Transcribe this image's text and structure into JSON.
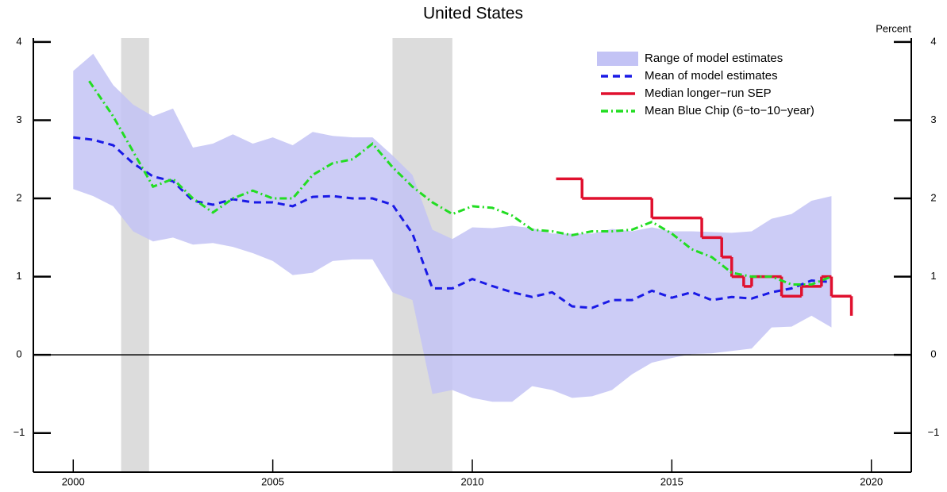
{
  "chart_data": {
    "type": "line",
    "title": "United States",
    "y_axis_label": "Percent",
    "xlim": [
      1999,
      2021
    ],
    "xticks": [
      2000,
      2005,
      2010,
      2015,
      2020
    ],
    "ylim": [
      -1.5,
      4.05
    ],
    "yticks": [
      {
        "value": -1,
        "label": "−1"
      },
      0,
      1,
      2,
      3,
      4
    ],
    "right_axis": true,
    "zero_line": true,
    "legend_position": "upper right",
    "shaded_periods": {
      "color": "#dcdcdc",
      "ranges": [
        [
          2001.2,
          2001.9
        ],
        [
          2008.0,
          2009.5
        ]
      ]
    },
    "band": {
      "name": "Range of model estimates",
      "color": "#c3c3f5",
      "x": [
        2000,
        2000.5,
        2001,
        2001.5,
        2002,
        2002.5,
        2003,
        2003.5,
        2004,
        2004.5,
        2005,
        2005.5,
        2006,
        2006.5,
        2007,
        2007.5,
        2008,
        2008.5,
        2009,
        2009.5,
        2010,
        2010.5,
        2011,
        2011.5,
        2012,
        2012.5,
        2013,
        2013.5,
        2014,
        2014.5,
        2015,
        2015.5,
        2016,
        2016.5,
        2017,
        2017.5,
        2018,
        2018.5,
        2019
      ],
      "high": [
        3.63,
        3.85,
        3.45,
        3.2,
        3.05,
        3.15,
        2.65,
        2.7,
        2.82,
        2.7,
        2.78,
        2.68,
        2.85,
        2.8,
        2.78,
        2.78,
        2.55,
        2.3,
        1.6,
        1.48,
        1.63,
        1.62,
        1.65,
        1.62,
        1.55,
        1.55,
        1.55,
        1.61,
        1.58,
        1.63,
        1.58,
        1.58,
        1.57,
        1.56,
        1.58,
        1.74,
        1.8,
        1.97,
        2.03
      ],
      "low": [
        2.12,
        2.03,
        1.9,
        1.58,
        1.45,
        1.5,
        1.41,
        1.43,
        1.38,
        1.3,
        1.2,
        1.02,
        1.05,
        1.2,
        1.22,
        1.22,
        0.8,
        0.7,
        -0.5,
        -0.45,
        -0.55,
        -0.6,
        -0.6,
        -0.4,
        -0.45,
        -0.55,
        -0.53,
        -0.45,
        -0.25,
        -0.1,
        -0.04,
        0.01,
        0.02,
        0.05,
        0.08,
        0.35,
        0.36,
        0.5,
        0.35
      ]
    },
    "series": [
      {
        "name": "Mean of model estimates",
        "color": "#1a1ae6",
        "style": "dashed",
        "x": [
          2000,
          2000.5,
          2001,
          2001.5,
          2002,
          2002.5,
          2003,
          2003.5,
          2004,
          2004.5,
          2005,
          2005.5,
          2006,
          2006.5,
          2007,
          2007.5,
          2008,
          2008.5,
          2009,
          2009.5,
          2010,
          2010.5,
          2011,
          2011.5,
          2012,
          2012.5,
          2013,
          2013.5,
          2014,
          2014.5,
          2015,
          2015.5,
          2016,
          2016.5,
          2017,
          2017.5,
          2018,
          2018.5,
          2019
        ],
        "values": [
          2.78,
          2.75,
          2.68,
          2.45,
          2.28,
          2.22,
          1.97,
          1.92,
          1.99,
          1.95,
          1.95,
          1.9,
          2.02,
          2.03,
          2.0,
          2.0,
          1.92,
          1.55,
          0.85,
          0.85,
          0.97,
          0.88,
          0.8,
          0.74,
          0.8,
          0.62,
          0.6,
          0.7,
          0.7,
          0.82,
          0.73,
          0.8,
          0.7,
          0.74,
          0.72,
          0.8,
          0.85,
          0.95,
          0.93
        ]
      },
      {
        "name": "Median longer−run SEP",
        "color": "#e0102e",
        "style": "step",
        "x": [
          2012.1,
          2012.75,
          2014.5,
          2015.75,
          2016.25,
          2016.5,
          2016.8,
          2017.0,
          2017.75,
          2018.25,
          2018.75,
          2019.0,
          2019.5
        ],
        "values": [
          2.25,
          2.0,
          1.75,
          1.5,
          1.25,
          1.0,
          0.875,
          1.0,
          0.75,
          0.875,
          1.0,
          0.75,
          0.5
        ]
      },
      {
        "name": "Mean Blue Chip (6−to−10−year)",
        "color": "#22dd22",
        "style": "dashdot",
        "x": [
          2000.4,
          2001,
          2001.5,
          2002,
          2002.5,
          2003,
          2003.5,
          2004,
          2004.5,
          2005,
          2005.5,
          2006,
          2006.5,
          2007,
          2007.5,
          2008,
          2008.5,
          2009,
          2009.5,
          2010,
          2010.5,
          2011,
          2011.5,
          2012,
          2012.5,
          2013,
          2013.5,
          2014,
          2014.5,
          2015,
          2015.5,
          2016,
          2016.5,
          2017,
          2017.5,
          2018,
          2018.5,
          2019
        ],
        "values": [
          3.5,
          3.05,
          2.6,
          2.15,
          2.25,
          2.0,
          1.82,
          2.0,
          2.1,
          2.0,
          2.0,
          2.3,
          2.45,
          2.5,
          2.7,
          2.4,
          2.15,
          1.95,
          1.8,
          1.9,
          1.88,
          1.78,
          1.6,
          1.58,
          1.53,
          1.58,
          1.58,
          1.6,
          1.7,
          1.55,
          1.35,
          1.25,
          1.05,
          1.0,
          1.0,
          0.9,
          0.9,
          1.0
        ]
      }
    ]
  }
}
